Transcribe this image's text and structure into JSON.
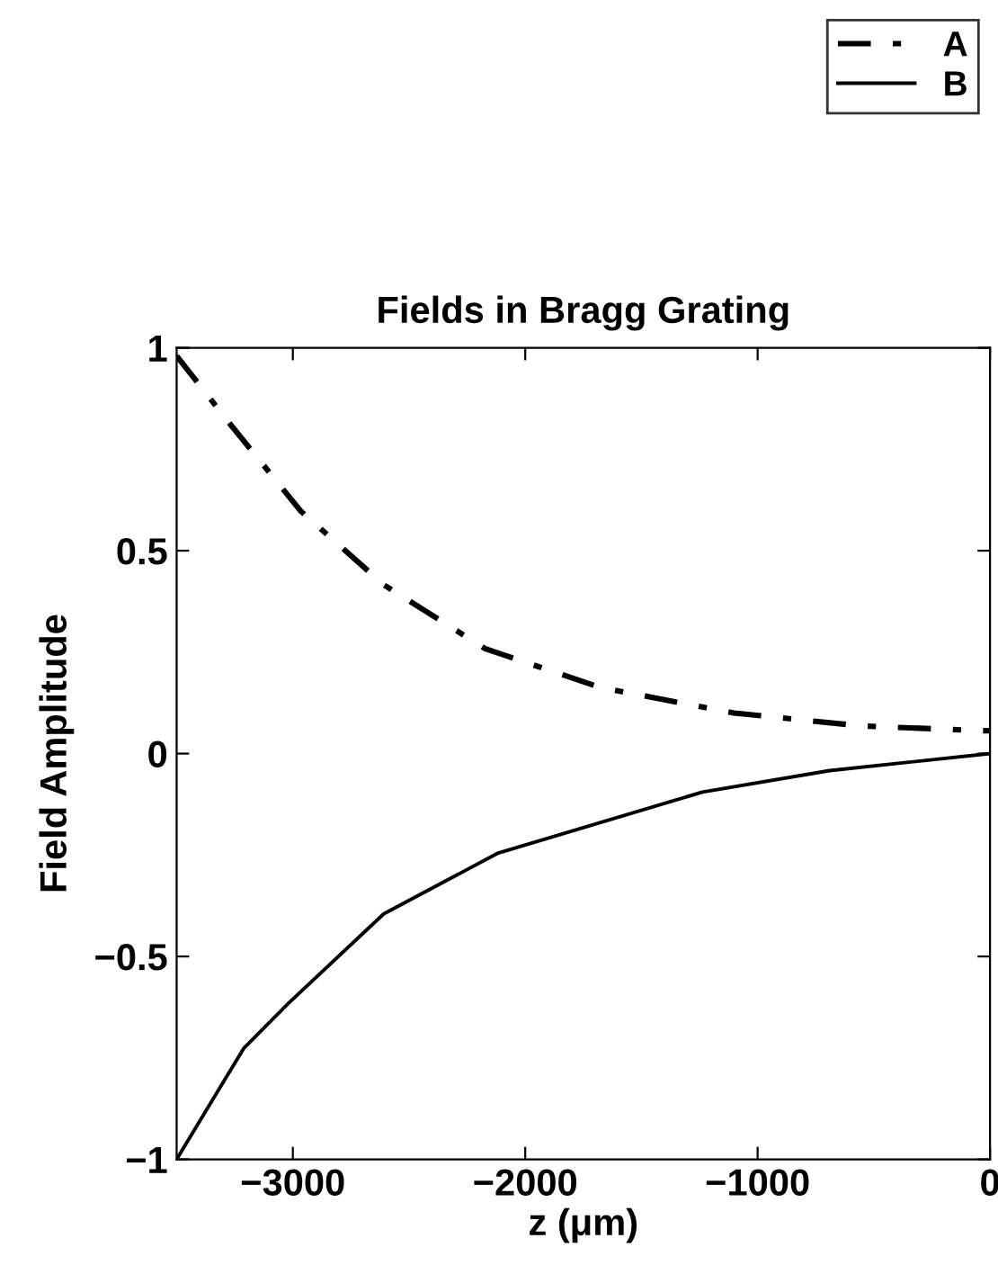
{
  "chart_data": {
    "type": "line",
    "title": "Fields in Bragg Grating",
    "xlabel": "z (μm)",
    "ylabel": "Field Amplitude",
    "xlim": [
      -3500,
      0
    ],
    "xticks": [
      -3000,
      -2000,
      -1000,
      0
    ],
    "ylim": [
      -1,
      1
    ],
    "yticks": [
      -1,
      -0.5,
      0,
      0.5,
      1
    ],
    "grid": false,
    "legend": "top right",
    "series": [
      {
        "name": "A",
        "color": "#000000",
        "line_style": "dashdot",
        "x": [
          -3500,
          -3267,
          -2965,
          -2609,
          -2171,
          -1677,
          -1102,
          -554,
          -60,
          0
        ],
        "values": [
          0.98,
          0.81,
          0.597,
          0.416,
          0.258,
          0.163,
          0.1,
          0.068,
          0.057,
          0.056
        ]
      },
      {
        "name": "B",
        "color": "#000000",
        "line_style": "solid",
        "x": [
          -3500,
          -3212,
          -3020,
          -2609,
          -2116,
          -1238,
          -690,
          0
        ],
        "values": [
          -1,
          -0.727,
          -0.616,
          -0.395,
          -0.245,
          -0.095,
          -0.042,
          0
        ]
      }
    ]
  }
}
